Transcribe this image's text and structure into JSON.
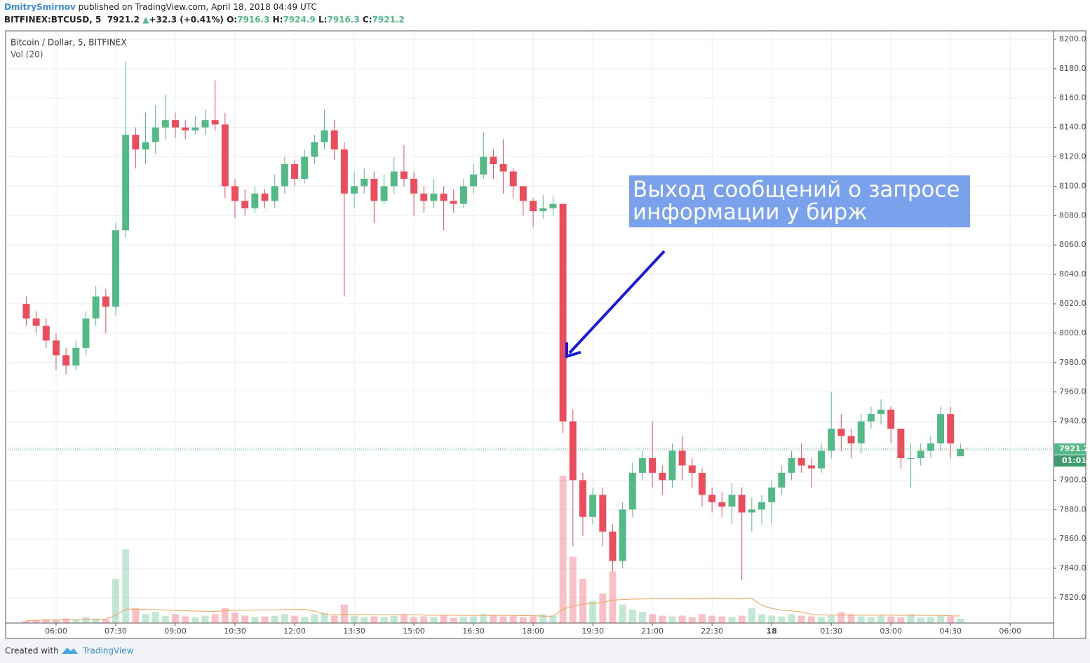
{
  "header": {
    "author": "DmitrySmirnov",
    "published": " published on TradingView.com, April 18, 2018 04:49 UTC",
    "symbol": "BITFINEX:BTCUSD, 5",
    "last": "7921.2",
    "arrow": "▲",
    "change": "+32.3 (+0.41%)",
    "o_label": "O:",
    "o": "7916.3",
    "h_label": "H:",
    "h": "7924.9",
    "l_label": "L:",
    "l": "7916.3",
    "c_label": "C:",
    "c": "7921.2"
  },
  "footer": {
    "created": "Created with",
    "brand": "TradingView"
  },
  "countdown": "01:01",
  "chart_data": {
    "type": "candlestick",
    "legend_title": "Bitcoin / Dollar, 5, BITFINEX",
    "legend_vol": "Vol (20)",
    "annotation": [
      "Выход сообщений о запросе",
      "информации у бирж"
    ],
    "up_color": "#53b987",
    "down_color": "#eb4d5c",
    "grid": true,
    "x": [
      5.25,
      5.5,
      5.75,
      6,
      6.25,
      6.5,
      6.75,
      7,
      7.25,
      7.5,
      7.75,
      8,
      8.25,
      8.5,
      8.75,
      9,
      9.25,
      9.5,
      9.75,
      10,
      10.25,
      10.5,
      10.75,
      11,
      11.25,
      11.5,
      11.75,
      12,
      12.25,
      12.5,
      12.75,
      13,
      13.25,
      13.5,
      13.75,
      14,
      14.25,
      14.5,
      14.75,
      15,
      15.25,
      15.5,
      15.75,
      16,
      16.25,
      16.5,
      16.75,
      17,
      17.25,
      17.5,
      17.75,
      18,
      18.25,
      18.5,
      18.75,
      19,
      19.25,
      19.5,
      19.75,
      20,
      20.25,
      20.5,
      20.75,
      21,
      21.25,
      21.5,
      21.75,
      22,
      22.25,
      22.5,
      22.75,
      23,
      23.25,
      23.5,
      23.75,
      24,
      24.25,
      24.5,
      24.75,
      25,
      25.25,
      25.5,
      25.75,
      26,
      26.25,
      26.5,
      26.75,
      27,
      27.25,
      27.5,
      27.75,
      28,
      28.25,
      28.5,
      28.75
    ],
    "open": [
      8020,
      8010,
      8005,
      7995,
      7985,
      7978,
      7990,
      8010,
      8025,
      8018,
      8070,
      8135,
      8125,
      8130,
      8140,
      8145,
      8140,
      8138,
      8140,
      8145,
      8142,
      8100,
      8090,
      8085,
      8095,
      8090,
      8100,
      8115,
      8105,
      8120,
      8130,
      8138,
      8125,
      8095,
      8100,
      8105,
      8090,
      8100,
      8110,
      8105,
      8095,
      8090,
      8095,
      8090,
      8088,
      8100,
      8108,
      8120,
      8115,
      8110,
      8100,
      8090,
      8083,
      8085,
      8088,
      7940,
      7900,
      7875,
      7890,
      7865,
      7845,
      7880,
      7905,
      7915,
      7905,
      7900,
      7920,
      7910,
      7905,
      7890,
      7885,
      7882,
      7890,
      7878,
      7880,
      7885,
      7895,
      7905,
      7915,
      7910,
      7908,
      7920,
      7935,
      7930,
      7925,
      7940,
      7945,
      7948,
      7935,
      7915,
      7915,
      7920,
      7925,
      7945,
      7916.3
    ],
    "high": [
      8025,
      8015,
      8010,
      8000,
      7990,
      7995,
      8015,
      8032,
      8030,
      8075,
      8185,
      8140,
      8150,
      8155,
      8162,
      8150,
      8145,
      8148,
      8152,
      8172,
      8150,
      8105,
      8098,
      8100,
      8098,
      8108,
      8120,
      8118,
      8125,
      8135,
      8152,
      8145,
      8130,
      8110,
      8112,
      8110,
      8108,
      8120,
      8128,
      8110,
      8100,
      8105,
      8100,
      8098,
      8105,
      8115,
      8137,
      8125,
      8132,
      8112,
      8100,
      8092,
      8094,
      8093,
      8088,
      7948,
      7905,
      7895,
      7895,
      7870,
      7885,
      7912,
      7920,
      7940,
      7910,
      7925,
      7930,
      7915,
      7908,
      7895,
      7892,
      7898,
      7895,
      7888,
      7890,
      7900,
      7910,
      7920,
      7925,
      7915,
      7925,
      7960,
      7945,
      7935,
      7945,
      7950,
      7955,
      7950,
      7935,
      7925,
      7925,
      7930,
      7950,
      7950,
      7924.9
    ],
    "low": [
      8005,
      8000,
      7990,
      7975,
      7972,
      7975,
      7985,
      8005,
      8000,
      8012,
      8065,
      8112,
      8115,
      8122,
      8132,
      8133,
      8132,
      8135,
      8135,
      8138,
      8092,
      8078,
      8080,
      8082,
      8085,
      8085,
      8095,
      8100,
      8102,
      8115,
      8125,
      8118,
      8025,
      8085,
      8095,
      8075,
      8088,
      8095,
      8100,
      8080,
      8082,
      8085,
      8070,
      8082,
      8085,
      8095,
      8105,
      8105,
      8095,
      8092,
      8080,
      8072,
      8078,
      8080,
      7932,
      7855,
      7862,
      7870,
      7855,
      7838,
      7840,
      7875,
      7900,
      7895,
      7890,
      7895,
      7900,
      7895,
      7882,
      7878,
      7875,
      7870,
      7832,
      7865,
      7870,
      7870,
      7890,
      7900,
      7905,
      7895,
      7905,
      7915,
      7920,
      7915,
      7918,
      7935,
      7938,
      7925,
      7908,
      7895,
      7910,
      7915,
      7920,
      7915,
      7916.3
    ],
    "close": [
      8010,
      8005,
      7995,
      7985,
      7978,
      7990,
      8010,
      8025,
      8018,
      8070,
      8135,
      8125,
      8130,
      8140,
      8145,
      8140,
      8138,
      8140,
      8145,
      8142,
      8100,
      8090,
      8085,
      8095,
      8090,
      8100,
      8115,
      8105,
      8120,
      8130,
      8138,
      8125,
      8095,
      8100,
      8105,
      8090,
      8100,
      8110,
      8105,
      8095,
      8090,
      8095,
      8090,
      8088,
      8100,
      8108,
      8120,
      8115,
      8110,
      8100,
      8090,
      8083,
      8085,
      8088,
      7940,
      7900,
      7875,
      7890,
      7865,
      7845,
      7880,
      7905,
      7915,
      7905,
      7900,
      7920,
      7910,
      7905,
      7890,
      7885,
      7882,
      7890,
      7878,
      7880,
      7885,
      7895,
      7905,
      7915,
      7910,
      7908,
      7920,
      7935,
      7930,
      7925,
      7940,
      7945,
      7948,
      7935,
      7915,
      7915,
      7920,
      7925,
      7945,
      7925,
      7921.2
    ],
    "volume": [
      3,
      4,
      5,
      4,
      6,
      5,
      8,
      6,
      5,
      60,
      100,
      20,
      12,
      15,
      10,
      12,
      9,
      8,
      10,
      12,
      20,
      14,
      10,
      8,
      9,
      10,
      12,
      10,
      8,
      12,
      14,
      10,
      25,
      10,
      8,
      9,
      8,
      10,
      12,
      8,
      9,
      8,
      10,
      7,
      8,
      9,
      12,
      10,
      9,
      10,
      8,
      9,
      12,
      10,
      200,
      90,
      60,
      30,
      40,
      70,
      25,
      18,
      15,
      12,
      10,
      9,
      10,
      8,
      12,
      10,
      9,
      8,
      10,
      20,
      12,
      10,
      9,
      12,
      10,
      9,
      8,
      10,
      15,
      12,
      9,
      8,
      10,
      9,
      8,
      12,
      7,
      8,
      10,
      9,
      6
    ],
    "vol_lim": [
      0,
      200
    ],
    "xlim": [
      4.73,
      31.09
    ],
    "xticks": [
      {
        "value": 6,
        "label": "06:00"
      },
      {
        "value": 7.5,
        "label": "07:30"
      },
      {
        "value": 9,
        "label": "09:00"
      },
      {
        "value": 10.5,
        "label": "10:30"
      },
      {
        "value": 12,
        "label": "12:00"
      },
      {
        "value": 13.5,
        "label": "13:30"
      },
      {
        "value": 15,
        "label": "15:00"
      },
      {
        "value": 16.5,
        "label": "16:30"
      },
      {
        "value": 18,
        "label": "18:00"
      },
      {
        "value": 19.5,
        "label": "19:30"
      },
      {
        "value": 21,
        "label": "21:00"
      },
      {
        "value": 22.5,
        "label": "22:30"
      },
      {
        "value": 24,
        "label": "18"
      },
      {
        "value": 25.5,
        "label": "01:30"
      },
      {
        "value": 27,
        "label": "03:00"
      },
      {
        "value": 28.5,
        "label": "04:30"
      },
      {
        "value": 30,
        "label": "06:00"
      }
    ],
    "ylim": [
      7802.8,
      8205.7
    ],
    "yticks": [
      {
        "value": 7820,
        "label": "7820.0"
      },
      {
        "value": 7840,
        "label": "7840.0"
      },
      {
        "value": 7860,
        "label": "7860.0"
      },
      {
        "value": 7880,
        "label": "7880.0"
      },
      {
        "value": 7900,
        "label": "7900.0"
      },
      {
        "value": 7920,
        "label": "7920.0"
      },
      {
        "value": 7940,
        "label": "7940.0"
      },
      {
        "value": 7960,
        "label": "7960.0"
      },
      {
        "value": 7980,
        "label": "7980.0"
      },
      {
        "value": 8000,
        "label": "8000.0"
      },
      {
        "value": 8020,
        "label": "8020.0"
      },
      {
        "value": 8040,
        "label": "8040.0"
      },
      {
        "value": 8060,
        "label": "8060.0"
      },
      {
        "value": 8080,
        "label": "8080.0"
      },
      {
        "value": 8100,
        "label": "8100.0"
      },
      {
        "value": 8120,
        "label": "8120.0"
      },
      {
        "value": 8140,
        "label": "8140.0"
      },
      {
        "value": 8160,
        "label": "8160.0"
      },
      {
        "value": 8180,
        "label": "8180.0"
      },
      {
        "value": 8200,
        "label": "8200.0"
      }
    ]
  }
}
